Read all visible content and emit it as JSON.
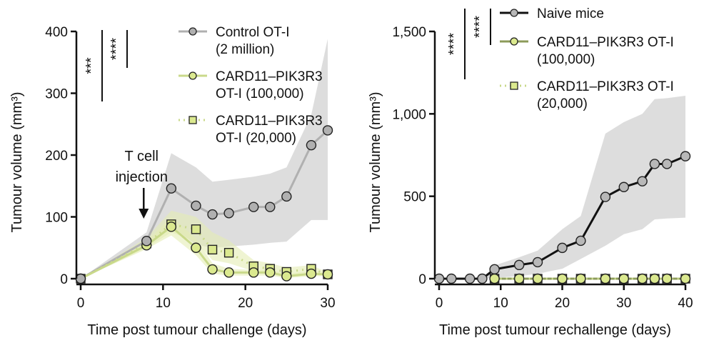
{
  "colors": {
    "control": "#b0b0b0",
    "control_band": "#d9d9d9",
    "card": "#c9d98a",
    "card_fill": "#dbe98f",
    "card_band": "#e4edb4",
    "naive": "#111111",
    "naive_fill": "#b8b8b8"
  },
  "chart_data": [
    {
      "type": "line",
      "xlabel": "Time post tumour challenge (days)",
      "ylabel": "Tumour volume (mm³)",
      "xlim": [
        0,
        30
      ],
      "ylim": [
        0,
        400
      ],
      "xticks": [
        "0",
        "10",
        "20",
        "30"
      ],
      "yticks": [
        "0",
        "100",
        "200",
        "300",
        "400"
      ],
      "annotation": {
        "line1": "T cell",
        "line2": "injection",
        "x": 8
      },
      "significance": [
        "***",
        "****"
      ],
      "series": [
        {
          "name": "Control OT-I (2 million)",
          "name_line1": "Control OT-I",
          "name_line2": "(2 million)",
          "marker": "circle",
          "style": "solid",
          "x": [
            0,
            8,
            11,
            14,
            16,
            18,
            21,
            23,
            25,
            28,
            30
          ],
          "y": [
            0,
            61,
            146,
            118,
            104,
            106,
            116,
            116,
            133,
            216,
            240
          ],
          "band_upper": [
            0,
            75,
            203,
            180,
            157,
            160,
            165,
            170,
            180,
            265,
            388
          ],
          "band_lower": [
            0,
            55,
            85,
            55,
            50,
            52,
            55,
            58,
            60,
            95,
            95
          ]
        },
        {
          "name": "CARD11–PIK3R3 OT-I (100,000)",
          "name_line1": "CARD11–PIK3R3",
          "name_line2": "OT-I (100,000)",
          "marker": "circle",
          "style": "solid",
          "x": [
            0,
            8,
            11,
            14,
            16,
            18,
            21,
            23,
            25,
            28,
            30
          ],
          "y": [
            0,
            54,
            84,
            50,
            15,
            10,
            10,
            10,
            4,
            8,
            7
          ],
          "band_upper": [
            0,
            60,
            100,
            65,
            25,
            16,
            14,
            14,
            8,
            12,
            10
          ],
          "band_lower": [
            0,
            48,
            70,
            38,
            8,
            5,
            5,
            5,
            1,
            4,
            4
          ]
        },
        {
          "name": "CARD11–PIK3R3 OT-I (20,000)",
          "name_line1": "CARD11–PIK3R3",
          "name_line2": "OT-I (20,000)",
          "marker": "square",
          "style": "dotted",
          "x": [
            0,
            8,
            11,
            14,
            16,
            18,
            21,
            23,
            25,
            28,
            30
          ],
          "y": [
            0,
            57,
            88,
            80,
            47,
            42,
            20,
            16,
            11,
            16,
            7
          ],
          "band_upper": [
            0,
            66,
            110,
            100,
            75,
            62,
            30,
            25,
            18,
            22,
            10
          ],
          "band_lower": [
            0,
            50,
            75,
            60,
            30,
            25,
            12,
            10,
            6,
            10,
            4
          ]
        }
      ]
    },
    {
      "type": "line",
      "xlabel": "Time post tumour rechallenge (days)",
      "ylabel": "Tumour volume (mm³)",
      "xlim": [
        0,
        40
      ],
      "ylim": [
        0,
        1500
      ],
      "xticks": [
        "0",
        "10",
        "20",
        "30",
        "40"
      ],
      "yticks": [
        "0",
        "500",
        "1,000",
        "1,500"
      ],
      "significance": [
        "****",
        "****"
      ],
      "series": [
        {
          "name": "Naive mice",
          "name_line1": "Naive mice",
          "name_line2": "",
          "marker": "circle",
          "style": "solid",
          "x": [
            0,
            2,
            5,
            7,
            9,
            13,
            16,
            20,
            23,
            27,
            30,
            33,
            35,
            37,
            40
          ],
          "y": [
            0,
            0,
            0,
            0,
            57,
            83,
            100,
            187,
            230,
            496,
            556,
            591,
            696,
            696,
            743
          ],
          "band_upper": [
            0,
            0,
            0,
            0,
            80,
            130,
            170,
            300,
            380,
            880,
            950,
            1000,
            1090,
            1095,
            1110
          ],
          "band_lower": [
            0,
            0,
            0,
            0,
            5,
            15,
            30,
            60,
            120,
            200,
            270,
            300,
            360,
            365,
            370
          ]
        },
        {
          "name": "CARD11–PIK3R3 OT-I (100,000)",
          "name_line1": "CARD11–PIK3R3 OT-I",
          "name_line2": "(100,000)",
          "marker": "circle",
          "style": "solid",
          "x": [
            9,
            13,
            16,
            20,
            23,
            27,
            30,
            33,
            35,
            37,
            40
          ],
          "y": [
            0,
            0,
            0,
            0,
            0,
            0,
            0,
            0,
            0,
            0,
            0
          ]
        },
        {
          "name": "CARD11–PIK3R3 OT-I (20,000)",
          "name_line1": "CARD11–PIK3R3 OT-I",
          "name_line2": "(20,000)",
          "marker": "square",
          "style": "dotted",
          "x": [
            9,
            13,
            16,
            20,
            23,
            27,
            30,
            33,
            35,
            37,
            40
          ],
          "y": [
            0,
            0,
            0,
            0,
            0,
            0,
            0,
            0,
            0,
            0,
            0
          ]
        }
      ]
    }
  ]
}
